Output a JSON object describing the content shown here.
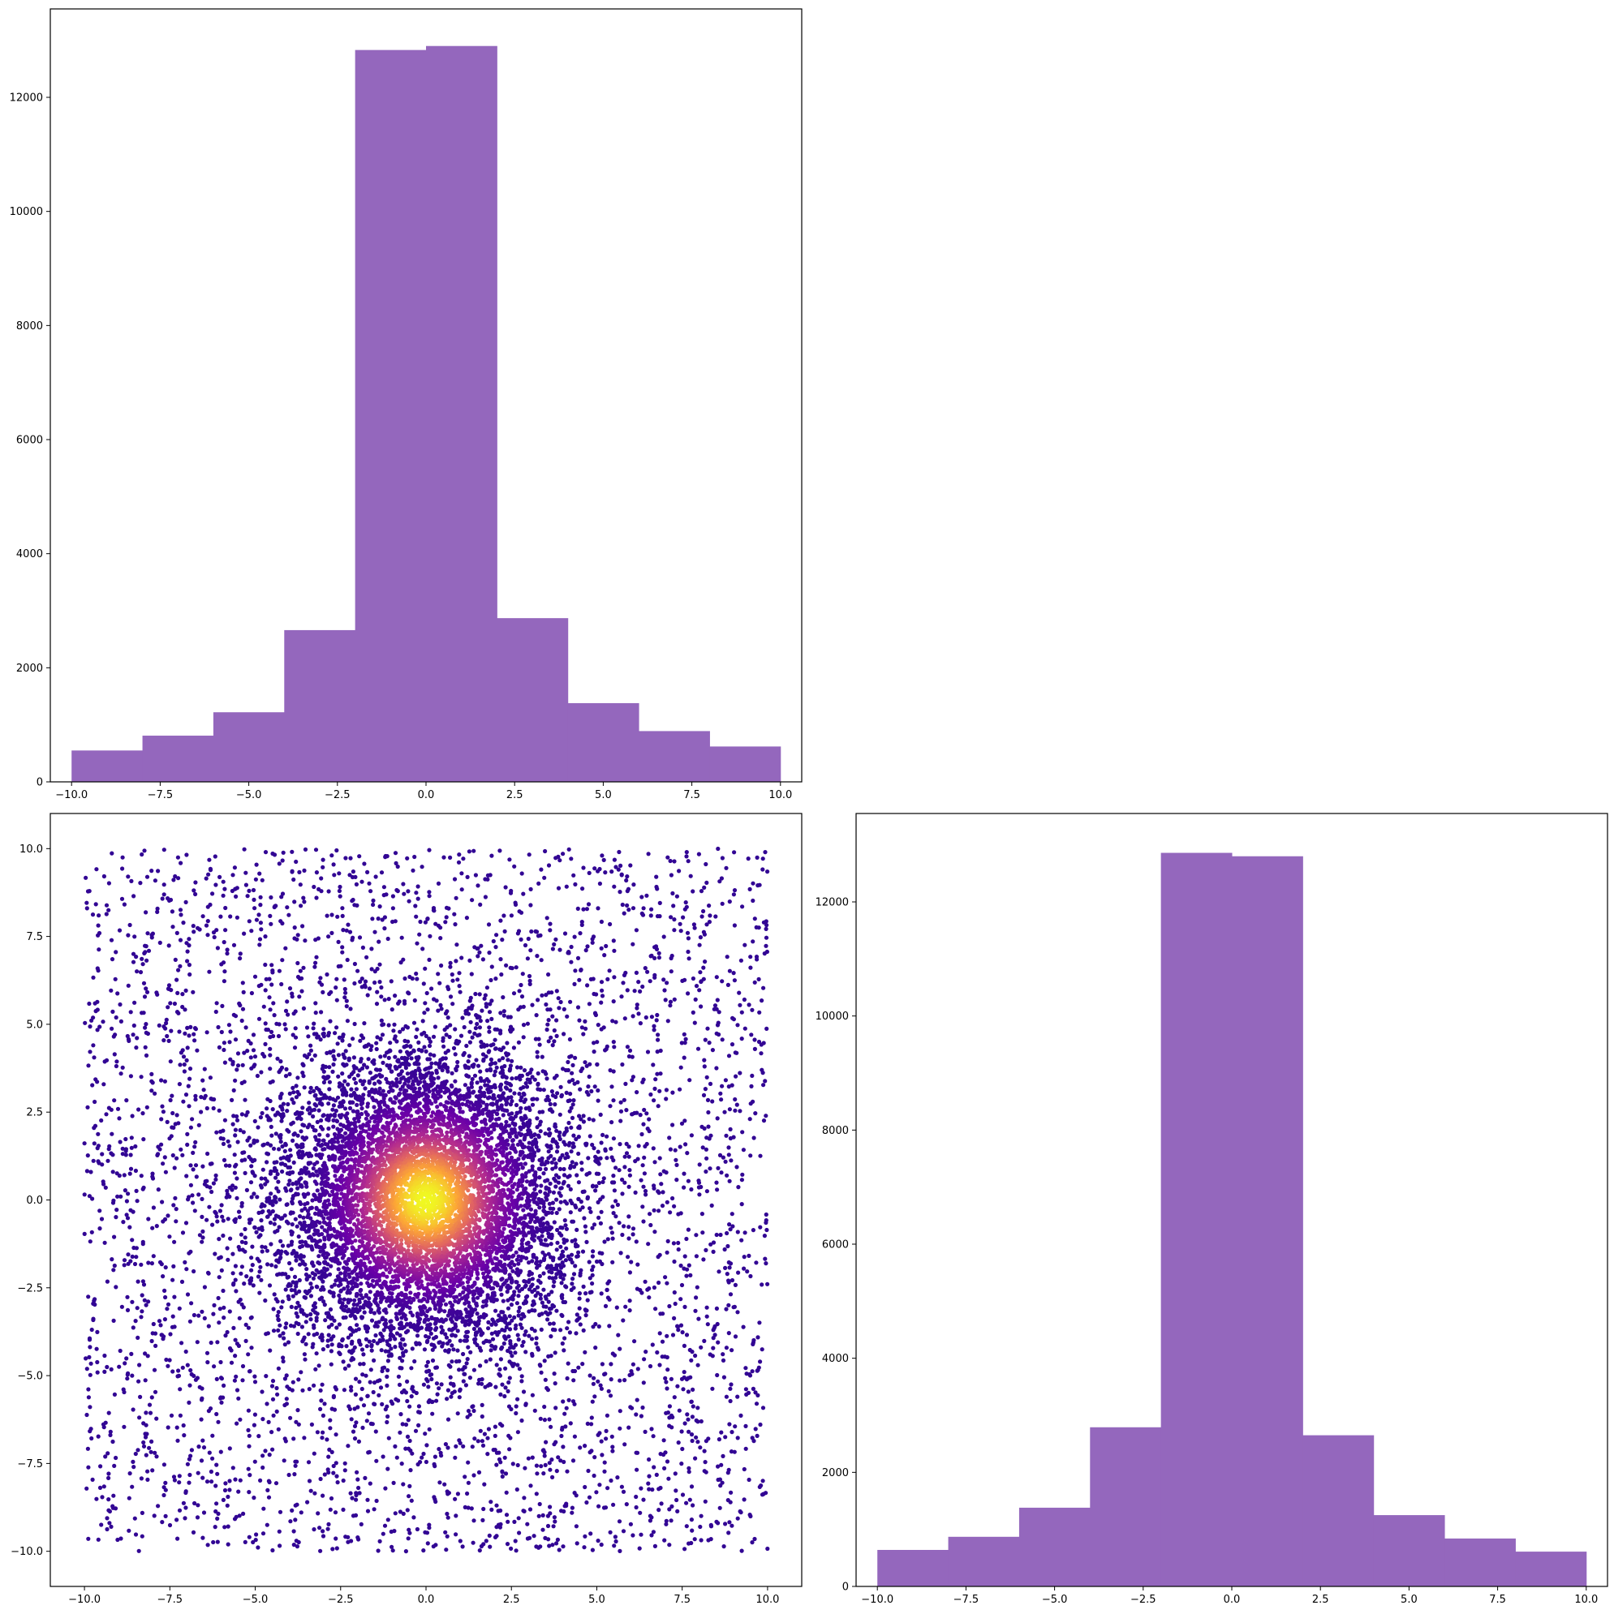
{
  "chart_data": [
    {
      "type": "bar",
      "kind": "histogram",
      "title": "",
      "xlabel": "",
      "ylabel": "",
      "bin_edges": [
        -10,
        -8,
        -6,
        -4,
        -2,
        0,
        2,
        4,
        6,
        8,
        10
      ],
      "values": [
        550,
        810,
        1220,
        2660,
        12830,
        12900,
        2870,
        1380,
        890,
        620
      ],
      "color": "#9467bd",
      "xlim": [
        -10.6,
        10.6
      ],
      "ylim": [
        0,
        13550
      ],
      "xticks": [
        -10.0,
        -7.5,
        -5.0,
        -2.5,
        0.0,
        2.5,
        5.0,
        7.5,
        10.0
      ],
      "xtick_labels": [
        "−10.0",
        "−7.5",
        "−5.0",
        "−2.5",
        "0.0",
        "2.5",
        "5.0",
        "7.5",
        "10.0"
      ],
      "yticks": [
        0,
        2000,
        4000,
        6000,
        8000,
        10000,
        12000
      ],
      "ytick_labels": [
        "0",
        "2000",
        "4000",
        "6000",
        "8000",
        "10000",
        "12000"
      ],
      "grid": false
    },
    {
      "type": "scatter",
      "title": "",
      "xlabel": "",
      "ylabel": "",
      "description_of_points": "dense cloud of points on [-10,10]x[-10,10], densest at the origin",
      "colormap": "plasma",
      "color_stops": [
        "#0d0887",
        "#6a00a8",
        "#b12a90",
        "#e16462",
        "#fca636",
        "#f0f921"
      ],
      "xlim": [
        -11,
        11
      ],
      "ylim": [
        -11,
        11
      ],
      "xticks": [
        -10.0,
        -7.5,
        -5.0,
        -2.5,
        0.0,
        2.5,
        5.0,
        7.5,
        10.0
      ],
      "xtick_labels": [
        "−10.0",
        "−7.5",
        "−5.0",
        "−2.5",
        "0.0",
        "2.5",
        "5.0",
        "7.5",
        "10.0"
      ],
      "yticks": [
        10.0,
        7.5,
        5.0,
        2.5,
        0.0,
        -2.5,
        -5.0,
        -7.5,
        -10.0
      ],
      "ytick_labels": [
        "10.0",
        "7.5",
        "5.0",
        "2.5",
        "0.0",
        "−2.5",
        "−5.0",
        "−7.5",
        "−10.0"
      ],
      "grid": false
    },
    {
      "type": "bar",
      "kind": "histogram",
      "title": "",
      "xlabel": "",
      "ylabel": "",
      "bin_edges": [
        -10,
        -8,
        -6,
        -4,
        -2,
        0,
        2,
        4,
        6,
        8,
        10
      ],
      "values": [
        640,
        870,
        1380,
        2790,
        12860,
        12800,
        2650,
        1250,
        840,
        610
      ],
      "color": "#9467bd",
      "xlim": [
        -10.6,
        10.6
      ],
      "ylim": [
        0,
        13550
      ],
      "xticks": [
        -10.0,
        -7.5,
        -5.0,
        -2.5,
        0.0,
        2.5,
        5.0,
        7.5,
        10.0
      ],
      "xtick_labels": [
        "−10.0",
        "−7.5",
        "−5.0",
        "−2.5",
        "0.0",
        "2.5",
        "5.0",
        "7.5",
        "10.0"
      ],
      "yticks": [
        0,
        2000,
        4000,
        6000,
        8000,
        10000,
        12000
      ],
      "ytick_labels": [
        "0",
        "2000",
        "4000",
        "6000",
        "8000",
        "10000",
        "12000"
      ],
      "grid": false
    }
  ]
}
